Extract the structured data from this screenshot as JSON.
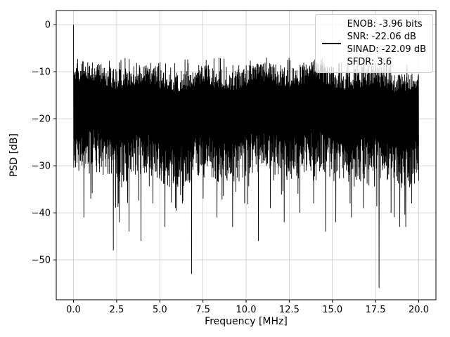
{
  "figure": {
    "background": "#ffffff",
    "axes_background": "#ffffff"
  },
  "chart_data": {
    "type": "line",
    "title": "",
    "xlabel": "Frequency [MHz]",
    "ylabel": "PSD [dB]",
    "xlim": [
      -1,
      21
    ],
    "ylim": [
      -58.5,
      3
    ],
    "xticks": [
      0,
      2.5,
      5,
      7.5,
      10,
      12.5,
      15,
      17.5,
      20
    ],
    "xtick_labels": [
      "0.0",
      "2.5",
      "5.0",
      "7.5",
      "10.0",
      "12.5",
      "15.0",
      "17.5",
      "20.0"
    ],
    "yticks": [
      0,
      -10,
      -20,
      -30,
      -40,
      -50
    ],
    "ytick_labels": [
      "0",
      "−10",
      "−20",
      "−30",
      "−40",
      "−50"
    ],
    "grid": true,
    "grid_color": "#c9c9c9",
    "line_color": "#000000",
    "spine_color": "#000000",
    "legend": {
      "position": "upper right",
      "frame_alpha": 0.8,
      "entries": [
        "ENOB: -3.96 bits",
        "SNR: -22.06 dB",
        "SINAD: -22.09 dB",
        "SFDR: 3.6"
      ]
    },
    "series": [
      {
        "name": "psd-noise-floor",
        "model": "dense-noise",
        "seed": 1337,
        "num_points": 1500,
        "x_start": 0,
        "x_end": 20,
        "peak": {
          "x": 0,
          "y": 0
        },
        "envelope": {
          "top_db": -7,
          "band_top_db": -11,
          "band_bottom_db": -24,
          "typical_min_db": -36
        },
        "deep_nulls": [
          [
            0.6,
            -41
          ],
          [
            1.0,
            -37
          ],
          [
            2.3,
            -48
          ],
          [
            2.6,
            -38
          ],
          [
            3.2,
            -44
          ],
          [
            3.9,
            -46
          ],
          [
            4.6,
            -38
          ],
          [
            5.3,
            -43
          ],
          [
            5.9,
            -39
          ],
          [
            6.3,
            -38
          ],
          [
            6.85,
            -53
          ],
          [
            7.5,
            -37
          ],
          [
            8.3,
            -41
          ],
          [
            9.2,
            -43
          ],
          [
            9.9,
            -38
          ],
          [
            10.7,
            -46
          ],
          [
            11.4,
            -39
          ],
          [
            12.2,
            -42
          ],
          [
            13.1,
            -40
          ],
          [
            13.9,
            -38
          ],
          [
            14.6,
            -44
          ],
          [
            15.2,
            -42
          ],
          [
            16.1,
            -41
          ],
          [
            16.8,
            -39
          ],
          [
            17.7,
            -56
          ],
          [
            18.4,
            -40
          ],
          [
            18.9,
            -43
          ],
          [
            19.6,
            -38
          ]
        ]
      }
    ]
  }
}
